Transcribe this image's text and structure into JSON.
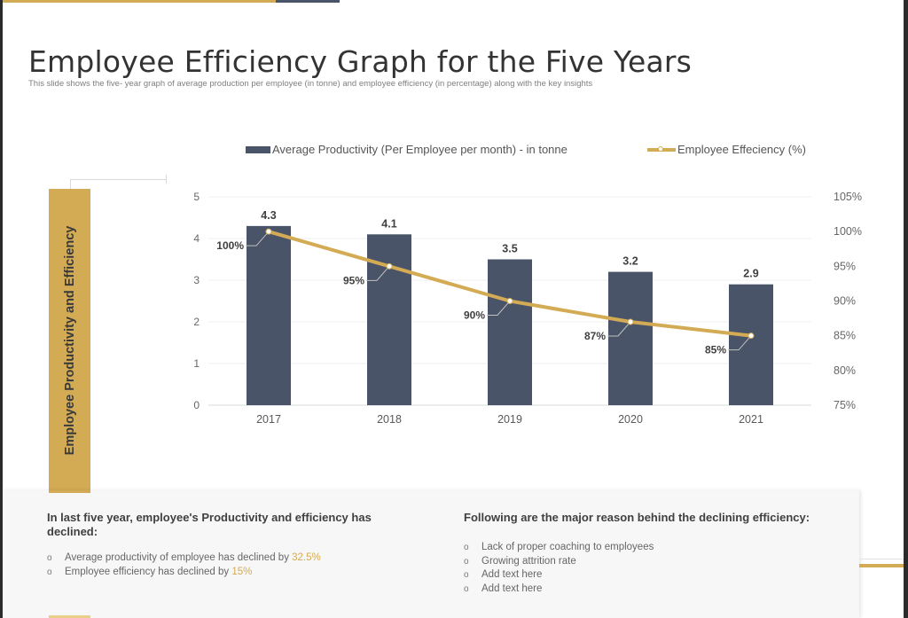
{
  "slide": {
    "title": "Employee Efficiency Graph for the Five Years",
    "subtitle": "This slide shows the five- year graph of average production per employee (in tonne) and employee efficiency (in percentage) along with the key insights",
    "side_label": "Employee Productivity and Efficiency",
    "colors": {
      "gold": "#d4ab55",
      "navy": "#4a5468",
      "text_dark": "#333333",
      "text_muted": "#7f7f7f"
    }
  },
  "legend": {
    "bar_label": "Average Productivity (Per Employee per month) - in tonne",
    "line_label": "Employee Effeciency (%)"
  },
  "chart_data": {
    "type": "bar+line",
    "title": "",
    "categories": [
      "2017",
      "2018",
      "2019",
      "2020",
      "2021"
    ],
    "series": [
      {
        "name": "Average Productivity (Per Employee per month) - in tonne",
        "type": "bar",
        "axis": "left",
        "values": [
          4.3,
          4.1,
          3.5,
          3.2,
          2.9
        ],
        "labels": [
          "4.3",
          "4.1",
          "3.5",
          "3.2",
          "2.9"
        ],
        "color": "#4a5468"
      },
      {
        "name": "Employee Effeciency (%)",
        "type": "line",
        "axis": "right",
        "values": [
          100,
          95,
          90,
          87,
          85
        ],
        "labels": [
          "100%",
          "95%",
          "90%",
          "87%",
          "85%"
        ],
        "color": "#d4ab55"
      }
    ],
    "y_left": {
      "min": 0,
      "max": 5,
      "ticks": [
        "0",
        "1",
        "2",
        "3",
        "4",
        "5"
      ]
    },
    "y_right": {
      "min": 75,
      "max": 105,
      "ticks": [
        "75%",
        "80%",
        "85%",
        "90%",
        "95%",
        "100%",
        "105%"
      ]
    },
    "ylabel": "Employee Productivity and Efficiency",
    "grid": true,
    "legend_position": "top"
  },
  "insights": {
    "left": {
      "heading": "In last five year, employee's Productivity  and efficiency has declined:",
      "bullets": [
        {
          "text": "Average productivity of employee has declined by ",
          "highlight": "32.5%"
        },
        {
          "text": "Employee efficiency has declined by ",
          "highlight": "15%"
        }
      ]
    },
    "right": {
      "heading": "Following are the major reason behind the declining efficiency:",
      "bullets": [
        "Lack of proper coaching to employees",
        "Growing attrition rate",
        "Add text here",
        "Add text here"
      ]
    }
  }
}
